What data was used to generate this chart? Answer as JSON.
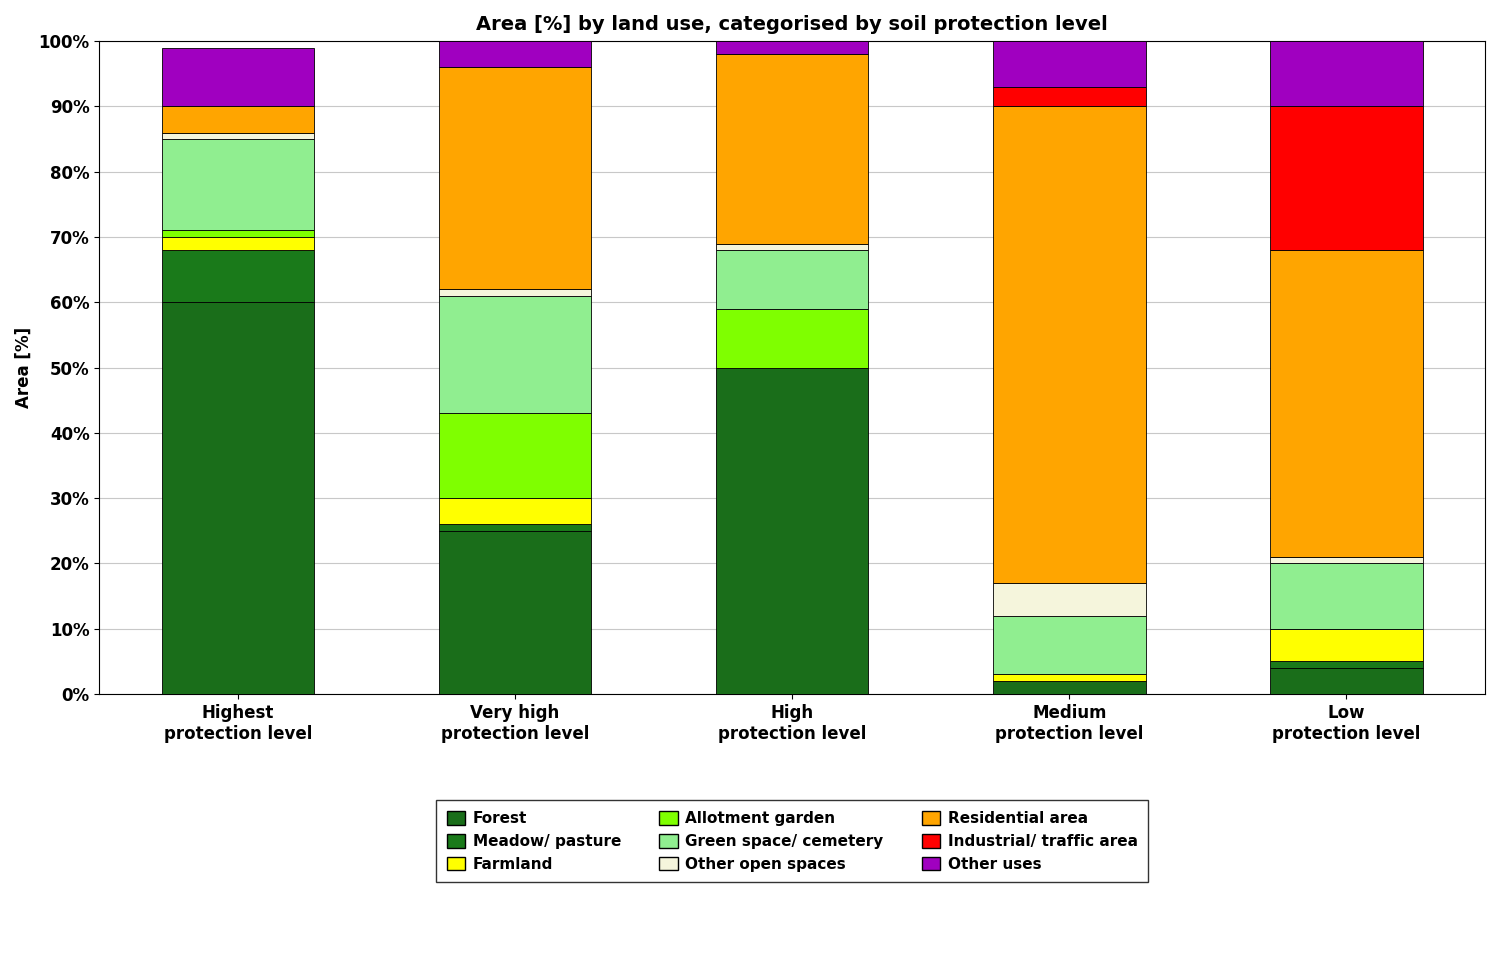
{
  "title": "Area [%] by land use, categorised by soil protection level",
  "ylabel": "Area [%]",
  "categories": [
    "Highest\nprotection level",
    "Very high\nprotection level",
    "High\nprotection level",
    "Medium\nprotection level",
    "Low\nprotection level"
  ],
  "series_order": [
    "Forest",
    "Meadow/ pasture",
    "Farmland",
    "Allotment garden",
    "Green space/ cemetery",
    "Other open spaces",
    "Residential area",
    "Industrial/ traffic area",
    "Other uses"
  ],
  "series": {
    "Forest": {
      "color": "#1a6e1a",
      "values": [
        60,
        25,
        50,
        2,
        4
      ]
    },
    "Meadow/ pasture": {
      "color": "#1a7a1a",
      "values": [
        8,
        1,
        0,
        0,
        1
      ]
    },
    "Farmland": {
      "color": "#ffff00",
      "values": [
        2,
        4,
        0,
        1,
        5
      ]
    },
    "Allotment garden": {
      "color": "#7fff00",
      "values": [
        1,
        13,
        9,
        0,
        0
      ]
    },
    "Green space/ cemetery": {
      "color": "#90ee90",
      "values": [
        14,
        18,
        9,
        9,
        10
      ]
    },
    "Other open spaces": {
      "color": "#f5f5dc",
      "values": [
        1,
        1,
        1,
        5,
        1
      ]
    },
    "Residential area": {
      "color": "#ffa500",
      "values": [
        4,
        34,
        29,
        73,
        47
      ]
    },
    "Industrial/ traffic area": {
      "color": "#ff0000",
      "values": [
        0,
        0,
        0,
        3,
        22
      ]
    },
    "Other uses": {
      "color": "#a000c0",
      "values": [
        9,
        4,
        2,
        7,
        10
      ]
    }
  },
  "ylim": [
    0,
    100
  ],
  "yticks": [
    0,
    10,
    20,
    30,
    40,
    50,
    60,
    70,
    80,
    90,
    100
  ],
  "ytick_labels": [
    "0%",
    "10%",
    "20%",
    "30%",
    "40%",
    "50%",
    "60%",
    "70%",
    "80%",
    "90%",
    "100%"
  ],
  "title_fontsize": 14,
  "axis_label_fontsize": 12,
  "tick_fontsize": 12,
  "legend_fontsize": 11,
  "bar_width": 0.55,
  "edge_color": "#000000",
  "background_color": "#ffffff",
  "grid_color": "#c8c8c8",
  "legend_order": [
    "Forest",
    "Meadow/ pasture",
    "Farmland",
    "Allotment garden",
    "Green space/ cemetery",
    "Other open spaces",
    "Residential area",
    "Industrial/ traffic area",
    "Other uses"
  ]
}
